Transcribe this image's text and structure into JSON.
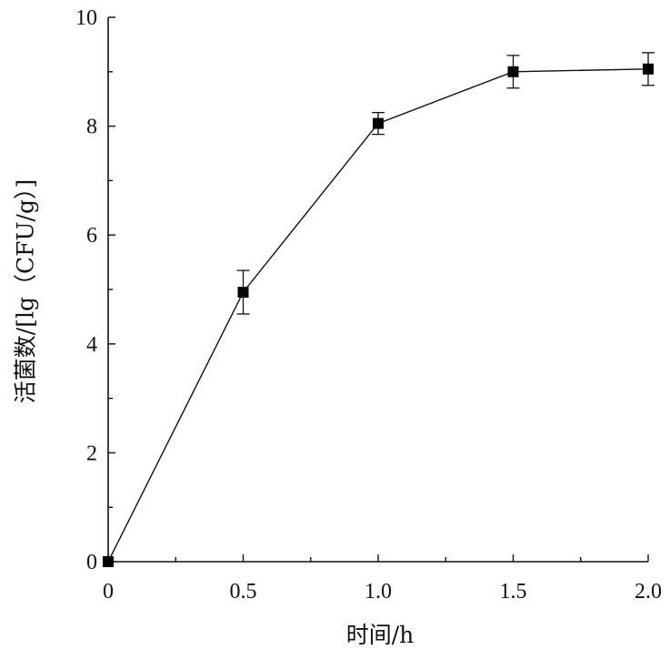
{
  "chart_data": {
    "type": "line",
    "xlabel": "时间/h",
    "ylabel": "活菌数/[lg（CFU/g）]",
    "xlim": [
      0,
      2.0
    ],
    "ylim": [
      0,
      10
    ],
    "x_ticks": [
      "0",
      "0.5",
      "1.0",
      "1.5",
      "2.0"
    ],
    "x_tick_values": [
      0,
      0.5,
      1.0,
      1.5,
      2.0
    ],
    "y_ticks": [
      "0",
      "2",
      "4",
      "6",
      "8",
      "10"
    ],
    "y_tick_values": [
      0,
      2,
      4,
      6,
      8,
      10
    ],
    "grid": false,
    "series": [
      {
        "marker": "square",
        "color": "#000000",
        "x": [
          0,
          0.5,
          1.0,
          1.5,
          2.0
        ],
        "y": [
          0,
          4.95,
          8.05,
          9.0,
          9.05
        ],
        "error": [
          0,
          0.4,
          0.2,
          0.3,
          0.3
        ]
      }
    ]
  }
}
